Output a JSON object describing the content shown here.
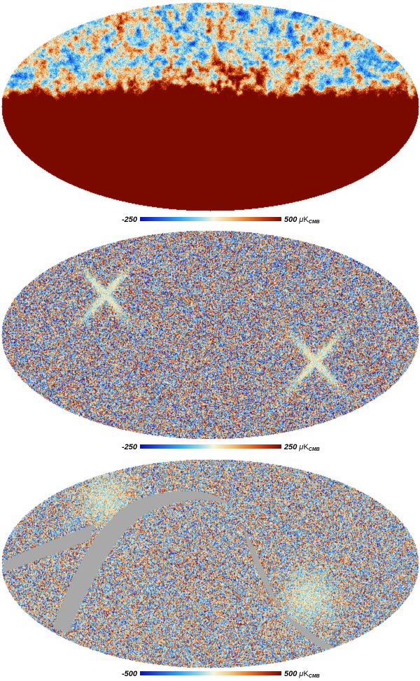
{
  "maps": [
    {
      "id": "top",
      "style": "galactic",
      "colorbar": {
        "min": "-250",
        "max": "500",
        "unit_prefix": "μ",
        "unit": "K",
        "unit_sub": "CMB"
      }
    },
    {
      "id": "middle",
      "style": "noise",
      "colorbar": {
        "min": "-250",
        "max": "250",
        "unit_prefix": "μ",
        "unit": "K",
        "unit_sub": "CMB"
      }
    },
    {
      "id": "bottom",
      "style": "masked",
      "colorbar": {
        "min": "-500",
        "max": "500",
        "unit_prefix": "μ",
        "unit": "K",
        "unit_sub": "CMB"
      }
    }
  ],
  "colors": {
    "deep_blue": "#0b0fb8",
    "light_blue": "#2fa6f2",
    "cream": "#f7f4d8",
    "orange": "#e77d2c",
    "dark_red": "#7a0a00",
    "mask_gray": "#a9a9a9"
  }
}
